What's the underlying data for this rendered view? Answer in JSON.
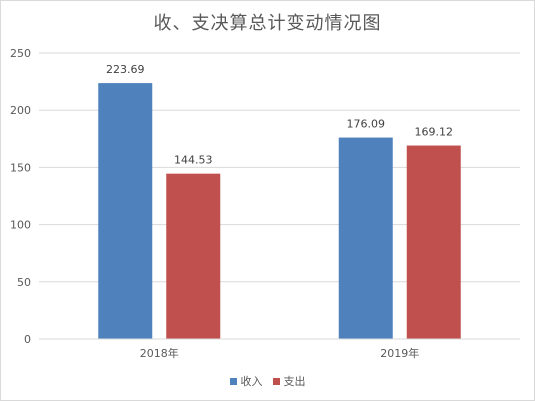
{
  "chart_data": {
    "type": "bar",
    "title": "收、支决算总计变动情况图",
    "categories": [
      "2018年",
      "2019年"
    ],
    "series": [
      {
        "name": "收入",
        "values": [
          223.69,
          176.09
        ],
        "color": "#4f81bd"
      },
      {
        "name": "支出",
        "values": [
          144.53,
          169.12
        ],
        "color": "#c0504d"
      }
    ],
    "value_labels": [
      [
        "223.69",
        "176.09"
      ],
      [
        "144.53",
        "169.12"
      ]
    ],
    "yticks": [
      "0",
      "50",
      "100",
      "150",
      "200",
      "250"
    ],
    "ylim": [
      0,
      250
    ],
    "grid": true,
    "legend_position": "bottom"
  }
}
